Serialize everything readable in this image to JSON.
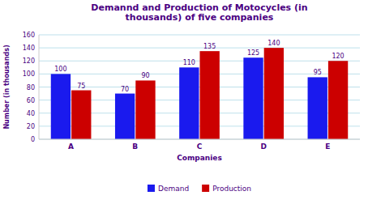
{
  "chart_data": {
    "type": "bar",
    "title": "Demannd and Production of Motocycles (in\nthousands) of five companies",
    "x_label": "Companies",
    "y_label": "Number (in thousands)",
    "categories": [
      "A",
      "B",
      "C",
      "D",
      "E"
    ],
    "series": [
      {
        "name": "Demand",
        "color": "#1a1aee",
        "values": [
          100,
          70,
          110,
          125,
          95
        ]
      },
      {
        "name": "Production",
        "color": "#cc0000",
        "values": [
          75,
          90,
          135,
          140,
          120
        ]
      }
    ],
    "ylim": [
      0,
      160
    ],
    "yticks": [
      0,
      20,
      40,
      60,
      80,
      100,
      120,
      140,
      160
    ],
    "grid": true,
    "legend": "bottom",
    "data_labels": true
  }
}
